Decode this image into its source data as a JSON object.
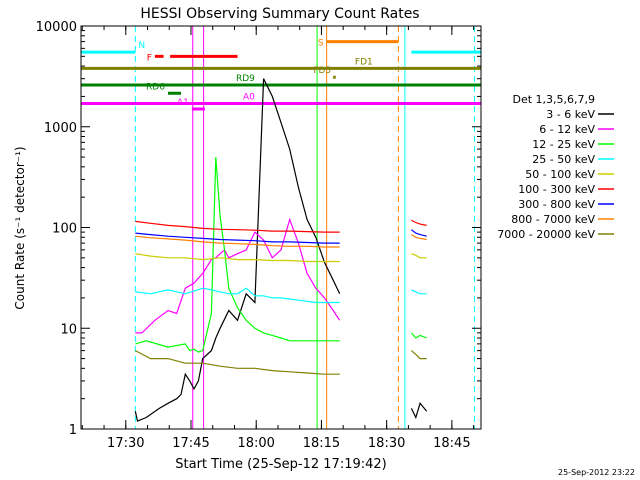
{
  "chart_data": {
    "type": "line",
    "title": "HESSI Observing Summary Count Rates",
    "xlabel": "Start Time (25-Sep-12 17:19:42)",
    "ylabel": "Count Rate (s⁻¹ detector⁻¹)",
    "x_unit": "minutes after 17:19:42",
    "xlim": [
      0,
      92
    ],
    "ylim": [
      1,
      10000
    ],
    "y_scale": "log",
    "grid": false,
    "legend_placement": "right",
    "x_ticks": [
      {
        "value": 10.3,
        "label": "17:30"
      },
      {
        "value": 25.3,
        "label": "17:45"
      },
      {
        "value": 40.3,
        "label": "18:00"
      },
      {
        "value": 55.3,
        "label": "18:15"
      },
      {
        "value": 70.3,
        "label": "18:30"
      },
      {
        "value": 85.3,
        "label": "18:45"
      }
    ],
    "y_ticks": [
      {
        "value": 1,
        "label": "1"
      },
      {
        "value": 10,
        "label": "10"
      },
      {
        "value": 100,
        "label": "100"
      },
      {
        "value": 1000,
        "label": "1000"
      },
      {
        "value": 10000,
        "label": "10000"
      }
    ],
    "legend_title": "Det 1,3,5,6,7,9",
    "series": [
      {
        "name": "3 - 6 keV",
        "color": "#000000",
        "x": [
          12.5,
          13,
          15,
          18,
          20,
          22,
          23,
          24,
          25,
          26,
          27,
          28,
          30,
          31,
          32,
          34,
          36,
          38,
          40,
          42,
          44,
          46,
          48,
          50,
          52,
          54,
          56,
          58,
          59.5
        ],
        "y": [
          1.5,
          1.2,
          1.3,
          1.6,
          1.8,
          2,
          2.2,
          3.5,
          3,
          2.5,
          3,
          5,
          6,
          8,
          10,
          15,
          12,
          22,
          18,
          3000,
          2000,
          1100,
          600,
          250,
          120,
          80,
          45,
          30,
          22
        ]
      },
      {
        "name": "6 - 12 keV",
        "color": "#ff00ff",
        "x": [
          12.5,
          14,
          17,
          20,
          22,
          24,
          26,
          28,
          30,
          31,
          32,
          33,
          34,
          36,
          38,
          40,
          42,
          44,
          46,
          48,
          50,
          52,
          54,
          56,
          58,
          59.5
        ],
        "y": [
          9,
          9,
          12,
          15,
          14,
          25,
          28,
          35,
          48,
          50,
          55,
          60,
          50,
          55,
          60,
          90,
          75,
          50,
          60,
          120,
          70,
          35,
          25,
          20,
          15,
          12
        ]
      },
      {
        "name": "12 - 25 keV",
        "color": "#00ff00",
        "x": [
          12.5,
          15,
          20,
          24,
          25,
          26,
          27,
          28,
          30,
          31,
          32,
          33,
          34,
          36,
          38,
          40,
          42,
          44,
          46,
          48,
          50,
          52,
          54,
          56,
          59.5
        ],
        "y": [
          7,
          7.5,
          6.5,
          7,
          6,
          6.2,
          5.8,
          6,
          14,
          500,
          130,
          60,
          25,
          16,
          12,
          10,
          9,
          8.5,
          8,
          7.5,
          7.5,
          7.5,
          7.5,
          7.5,
          7.5
        ]
      },
      {
        "name": "25 - 50 keV",
        "color": "#00ffff",
        "x": [
          12.5,
          16,
          20,
          24,
          28,
          30,
          32,
          34,
          36,
          38,
          40,
          42,
          44,
          46,
          50,
          54,
          59.5
        ],
        "y": [
          23,
          22,
          24,
          22,
          25,
          24,
          23,
          22,
          22,
          25,
          21,
          21,
          20,
          20,
          19,
          18,
          18
        ]
      },
      {
        "name": "50 - 100 keV",
        "color": "#cccc00",
        "x": [
          12.5,
          16,
          20,
          24,
          28,
          32,
          36,
          40,
          44,
          48,
          52,
          56,
          59.5
        ],
        "y": [
          55,
          52,
          50,
          50,
          48,
          50,
          48,
          48,
          47,
          47,
          46,
          46,
          46
        ]
      },
      {
        "name": "100 - 300 keV",
        "color": "#ff0000",
        "x": [
          12.5,
          16,
          20,
          24,
          28,
          32,
          36,
          40,
          44,
          48,
          52,
          56,
          59.5
        ],
        "y": [
          115,
          110,
          105,
          102,
          98,
          96,
          95,
          94,
          92,
          92,
          91,
          90,
          90
        ]
      },
      {
        "name": "300 - 800 keV",
        "color": "#0000ff",
        "x": [
          12.5,
          16,
          20,
          24,
          28,
          32,
          36,
          40,
          44,
          48,
          52,
          56,
          59.5
        ],
        "y": [
          88,
          85,
          82,
          80,
          78,
          76,
          75,
          74,
          72,
          72,
          71,
          70,
          70
        ]
      },
      {
        "name": "800 - 7000 keV",
        "color": "#ff8000",
        "x": [
          12.5,
          16,
          20,
          24,
          28,
          32,
          36,
          40,
          44,
          48,
          52,
          56,
          59.5
        ],
        "y": [
          82,
          79,
          77,
          75,
          72,
          70,
          69,
          68,
          66,
          65,
          65,
          64,
          64
        ]
      },
      {
        "name": "7000 - 20000 keV",
        "color": "#808000",
        "x": [
          12.5,
          16,
          20,
          24,
          28,
          32,
          36,
          40,
          44,
          48,
          52,
          56,
          59.5
        ],
        "y": [
          6,
          5,
          5,
          4.5,
          4.5,
          4.2,
          4,
          4,
          3.8,
          3.7,
          3.6,
          3.5,
          3.5
        ]
      }
    ],
    "series_segment2": [
      {
        "name": "3 - 6 keV",
        "color": "#000000",
        "x": [
          76,
          77,
          78,
          79.5
        ],
        "y": [
          1.6,
          1.3,
          1.8,
          1.5
        ]
      },
      {
        "name": "12 - 25 keV",
        "color": "#00ff00",
        "x": [
          76,
          77,
          78,
          79.5
        ],
        "y": [
          9,
          8,
          8.5,
          8
        ]
      },
      {
        "name": "25 - 50 keV",
        "color": "#00ffff",
        "x": [
          76,
          77,
          78,
          79.5
        ],
        "y": [
          24,
          23,
          22,
          22
        ]
      },
      {
        "name": "50 - 100 keV",
        "color": "#cccc00",
        "x": [
          76,
          77,
          78,
          79.5
        ],
        "y": [
          55,
          53,
          50,
          50
        ]
      },
      {
        "name": "100 - 300 keV",
        "color": "#ff0000",
        "x": [
          76,
          77,
          78,
          79.5
        ],
        "y": [
          118,
          112,
          108,
          105
        ]
      },
      {
        "name": "300 - 800 keV",
        "color": "#0000ff",
        "x": [
          76,
          77,
          78,
          79.5
        ],
        "y": [
          95,
          88,
          85,
          82
        ]
      },
      {
        "name": "800 - 7000 keV",
        "color": "#ff8000",
        "x": [
          76,
          77,
          78,
          79.5
        ],
        "y": [
          85,
          80,
          78,
          76
        ]
      },
      {
        "name": "7000 - 20000 keV",
        "color": "#808000",
        "x": [
          76,
          77,
          78,
          79.5
        ],
        "y": [
          6,
          5.5,
          5,
          5
        ]
      }
    ],
    "flag_bars": [
      {
        "label": "N",
        "color": "#00ffff",
        "y": 5500,
        "segments": [
          [
            0,
            12.5
          ],
          [
            76,
            92
          ]
        ]
      },
      {
        "label": "F",
        "color": "#ff0000",
        "y": 5000,
        "segments": [
          [
            17,
            19
          ],
          [
            20.5,
            36
          ]
        ]
      },
      {
        "label": "S",
        "color": "#ff8000",
        "y": 7000,
        "segments": [
          [
            56.5,
            73
          ]
        ]
      },
      {
        "label": "FD1",
        "color": "#808000",
        "y": 3800,
        "segments": [
          [
            0,
            92
          ]
        ]
      },
      {
        "label": "FD5",
        "color": "#808000",
        "y": 3100,
        "segments": [
          [
            58,
            58.6
          ]
        ]
      },
      {
        "label": "RD6",
        "color": "#008000",
        "y": 2150,
        "segments": [
          [
            20,
            23
          ]
        ]
      },
      {
        "label": "RD9",
        "color": "#008000",
        "y": 2600,
        "segments": [
          [
            0,
            92
          ]
        ]
      },
      {
        "label": "A1",
        "color": "#ff00ff",
        "y": 1500,
        "segments": [
          [
            25.5,
            28.5
          ]
        ]
      },
      {
        "label": "A0",
        "color": "#ff00ff",
        "y": 1700,
        "segments": [
          [
            0,
            92
          ]
        ]
      }
    ],
    "vertical_lines": [
      {
        "x": 0,
        "color": "#00ffff",
        "style": "solid"
      },
      {
        "x": 12.5,
        "color": "#00ffff",
        "style": "dashed"
      },
      {
        "x": 25.7,
        "color": "#ff00ff",
        "style": "solid"
      },
      {
        "x": 28.2,
        "color": "#ff00ff",
        "style": "solid"
      },
      {
        "x": 54.3,
        "color": "#00ff00",
        "style": "solid"
      },
      {
        "x": 56.5,
        "color": "#ff8000",
        "style": "solid"
      },
      {
        "x": 73,
        "color": "#ff8000",
        "style": "dashed"
      },
      {
        "x": 74.5,
        "color": "#00ffff",
        "style": "solid"
      },
      {
        "x": 90.5,
        "color": "#00ffff",
        "style": "dashed"
      }
    ],
    "footer_text": "25-Sep-2012 23:22"
  }
}
